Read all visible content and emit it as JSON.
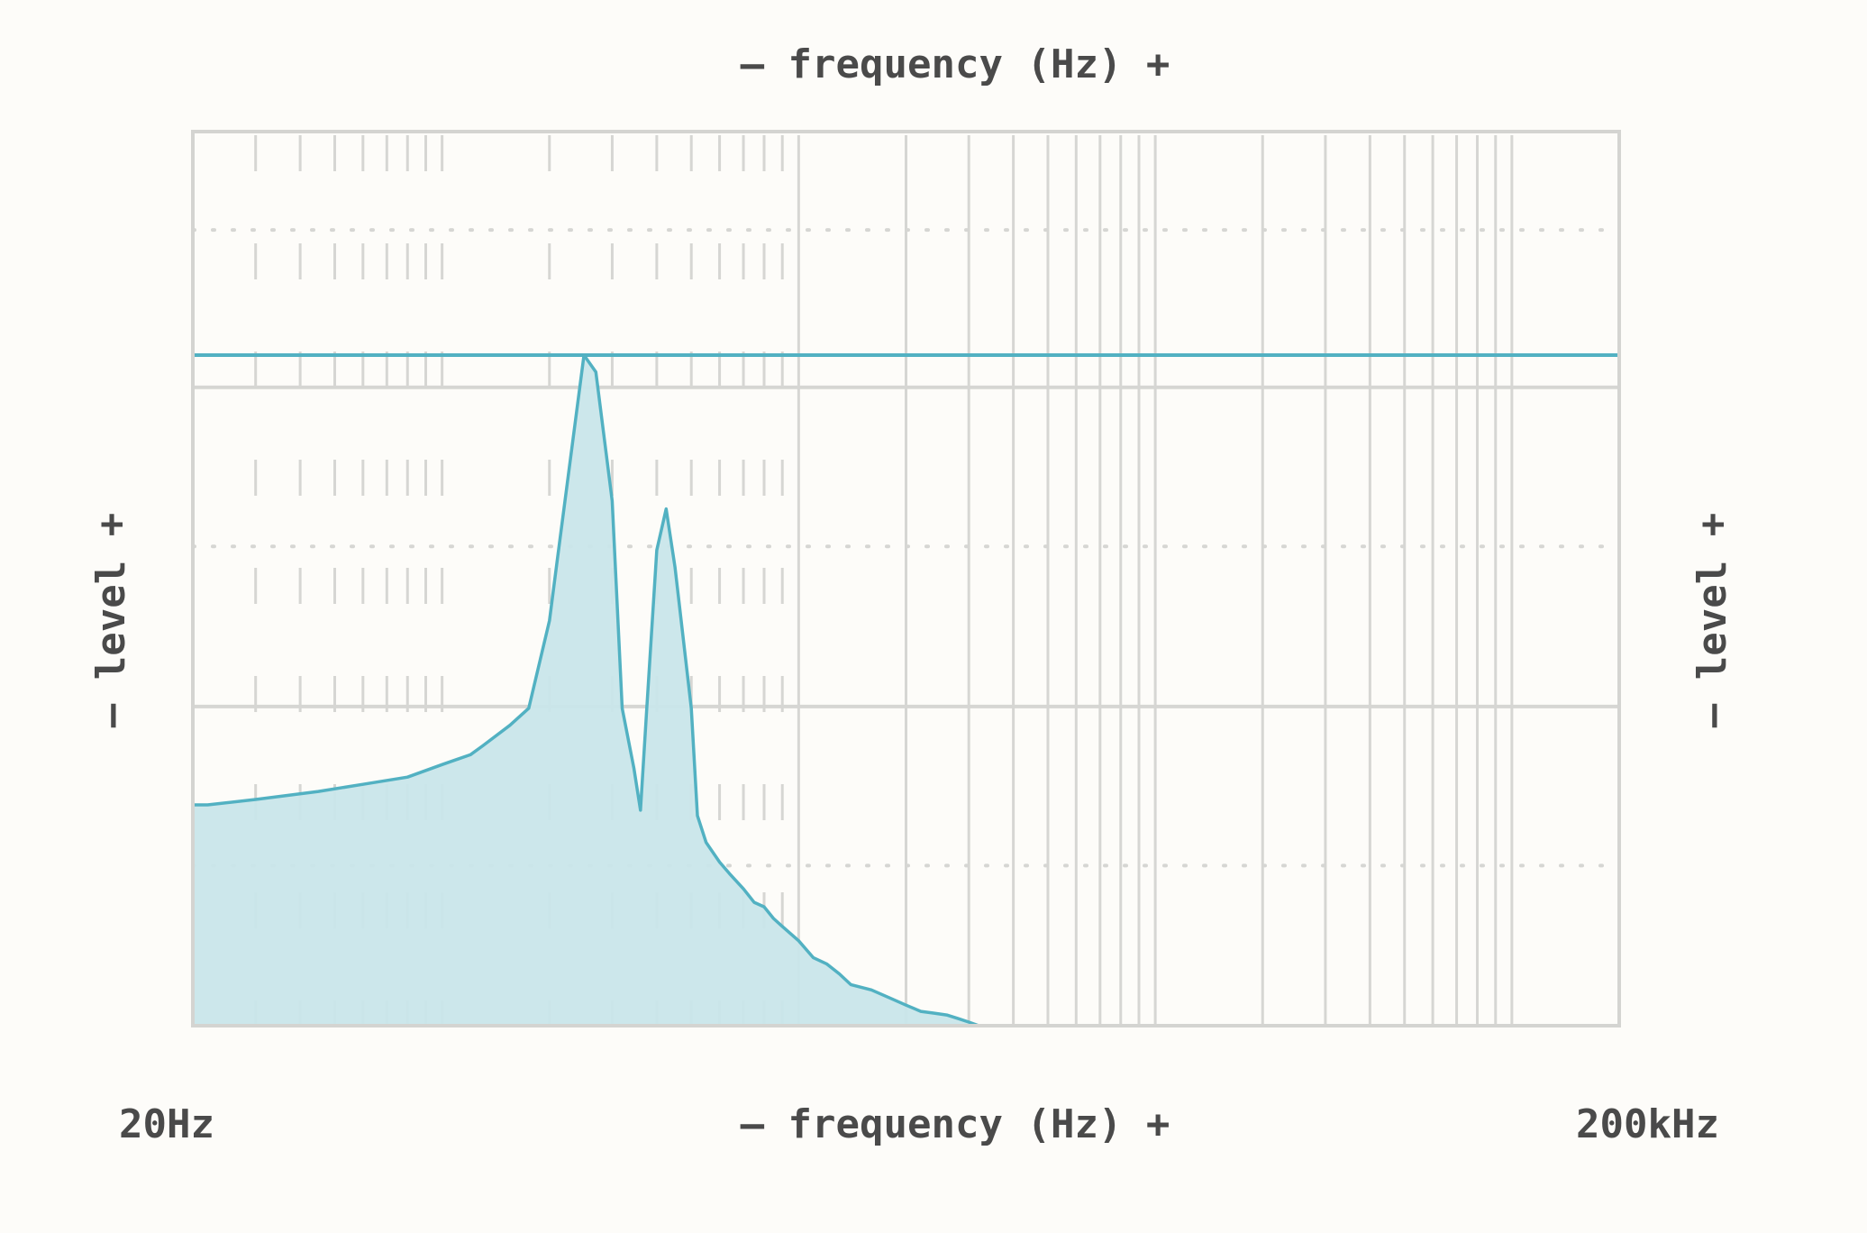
{
  "chart_data": {
    "type": "area",
    "x_scale": "log",
    "xlim_label_min": "20Hz",
    "xlim_label_max": "200kHz",
    "xlim": [
      20,
      200000
    ],
    "xlabel_top": "– frequency (Hz) +",
    "xlabel_bottom": "– frequency (Hz) +",
    "ylabel_left": "– level +",
    "ylabel_right": "– level +",
    "ylim": [
      0,
      100
    ],
    "threshold_level": 75,
    "series": [
      {
        "x": [
          20,
          22,
          30,
          45,
          60,
          80,
          100,
          120,
          130,
          155,
          175,
          200,
          210,
          250,
          270,
          300,
          320,
          345,
          360,
          375,
          400,
          425,
          450,
          500,
          520,
          550,
          600,
          640,
          700,
          750,
          800,
          850,
          900,
          1000,
          1100,
          1200,
          1300,
          1400,
          1600,
          1800,
          2000,
          2200,
          2400,
          2600,
          2800,
          3000,
          3200,
          200000
        ],
        "y": [
          24.7,
          24.7,
          25.3,
          26.2,
          27,
          27.8,
          29.2,
          30.3,
          31.3,
          33.6,
          35.5,
          45.3,
          51.8,
          75,
          73.1,
          58.7,
          35.5,
          28.8,
          24.1,
          35.5,
          53.2,
          57.8,
          51.3,
          35.5,
          23.5,
          20.5,
          18.3,
          17,
          15.3,
          13.8,
          13.3,
          12,
          11.1,
          9.5,
          7.6,
          6.9,
          5.8,
          4.6,
          4,
          3.1,
          2.3,
          1.6,
          1.4,
          1.2,
          0.8,
          0.4,
          0,
          0
        ]
      }
    ],
    "colors": {
      "line": "#52b1c2",
      "fill": "#c9e6ea",
      "grid": "#d6d6d3",
      "frame": "#d4d4d1",
      "text": "#4a4a4a"
    },
    "grid": true
  }
}
